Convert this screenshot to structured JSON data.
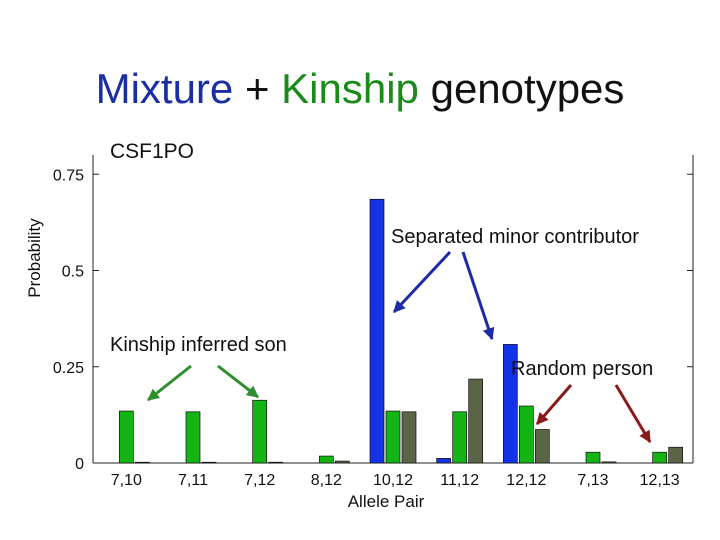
{
  "slide": {
    "title_part1": "Mixture",
    "title_plus": " + ",
    "title_part2": "Kinship",
    "title_part3": " genotypes"
  },
  "chart_data": {
    "type": "bar",
    "subtitle": "CSF1PO",
    "xlabel": "Allele Pair",
    "ylabel": "Probability",
    "ylim": [
      0,
      0.8
    ],
    "yticks": [
      0,
      0.25,
      0.5,
      0.75
    ],
    "ytick_labels": [
      "0",
      "0.25",
      "0.5",
      "0.75"
    ],
    "categories": [
      "7,10",
      "7,11",
      "7,12",
      "8,12",
      "10,12",
      "11,12",
      "12,12",
      "7,13",
      "12,13"
    ],
    "series": [
      {
        "values": [
          0,
          0,
          0,
          0,
          0.685,
          0.012,
          0.308,
          0,
          0
        ],
        "color": "#1432e6"
      },
      {
        "values": [
          0.135,
          0.133,
          0.163,
          0.018,
          0.135,
          0.133,
          0.148,
          0.028,
          0.028
        ],
        "color": "#14b414"
      },
      {
        "values": [
          0.002,
          0.002,
          0.002,
          0.005,
          0.133,
          0.218,
          0.087,
          0.003,
          0.041
        ],
        "color": "#5a6446"
      }
    ],
    "annotations": [
      {
        "text": "Separated minor contributor",
        "color": "#111111"
      },
      {
        "text": "Kinship inferred son",
        "color": "#111111"
      },
      {
        "text": "Random person",
        "color": "#111111"
      }
    ]
  }
}
